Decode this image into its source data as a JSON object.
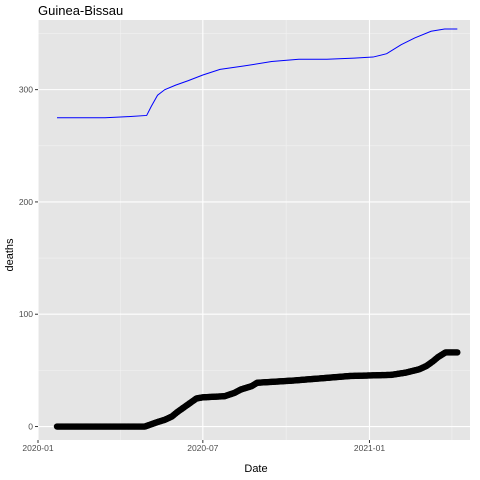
{
  "chart_data": {
    "type": "line",
    "title": "Guinea-Bissau",
    "xlabel": "Date",
    "ylabel": "deaths",
    "x_type": "date",
    "xlim": [
      "2020-01-01",
      "2021-04-22"
    ],
    "ylim": [
      -12,
      362
    ],
    "x_ticks": [
      {
        "value": "2020-01-01",
        "label": "2020-01"
      },
      {
        "value": "2020-07-01",
        "label": "2020-07"
      },
      {
        "value": "2021-01-01",
        "label": "2021-01"
      }
    ],
    "y_ticks": [
      0,
      100,
      200,
      300
    ],
    "grid": true,
    "background": "#E5E5E5",
    "series": [
      {
        "style": "line",
        "color": "#0000FF",
        "points": [
          [
            "2020-01-22",
            275
          ],
          [
            "2020-03-15",
            275
          ],
          [
            "2020-04-10",
            276
          ],
          [
            "2020-04-30",
            277
          ],
          [
            "2020-05-05",
            285
          ],
          [
            "2020-05-12",
            295
          ],
          [
            "2020-05-20",
            300
          ],
          [
            "2020-06-01",
            304
          ],
          [
            "2020-06-15",
            308
          ],
          [
            "2020-07-01",
            313
          ],
          [
            "2020-07-20",
            318
          ],
          [
            "2020-08-15",
            321
          ],
          [
            "2020-09-15",
            325
          ],
          [
            "2020-10-15",
            327
          ],
          [
            "2020-11-15",
            327
          ],
          [
            "2020-12-15",
            328
          ],
          [
            "2021-01-05",
            329
          ],
          [
            "2021-01-20",
            332
          ],
          [
            "2021-02-05",
            340
          ],
          [
            "2021-02-20",
            346
          ],
          [
            "2021-03-10",
            352
          ],
          [
            "2021-03-25",
            354
          ],
          [
            "2021-04-08",
            354
          ]
        ]
      },
      {
        "style": "points",
        "color": "#000000",
        "points": [
          [
            "2020-01-22",
            0
          ],
          [
            "2020-04-28",
            0
          ],
          [
            "2020-05-05",
            2
          ],
          [
            "2020-05-12",
            4
          ],
          [
            "2020-05-20",
            6
          ],
          [
            "2020-05-28",
            9
          ],
          [
            "2020-06-03",
            13
          ],
          [
            "2020-06-10",
            17
          ],
          [
            "2020-06-17",
            21
          ],
          [
            "2020-06-24",
            25
          ],
          [
            "2020-07-01",
            26
          ],
          [
            "2020-07-25",
            27
          ],
          [
            "2020-08-05",
            30
          ],
          [
            "2020-08-12",
            33
          ],
          [
            "2020-08-24",
            36
          ],
          [
            "2020-08-30",
            39
          ],
          [
            "2020-09-20",
            40
          ],
          [
            "2020-10-10",
            41
          ],
          [
            "2020-10-25",
            42
          ],
          [
            "2020-11-10",
            43
          ],
          [
            "2020-11-25",
            44
          ],
          [
            "2020-12-10",
            45
          ],
          [
            "2021-01-25",
            46
          ],
          [
            "2021-02-10",
            48
          ],
          [
            "2021-02-25",
            51
          ],
          [
            "2021-03-05",
            54
          ],
          [
            "2021-03-12",
            58
          ],
          [
            "2021-03-18",
            62
          ],
          [
            "2021-03-26",
            66
          ],
          [
            "2021-04-08",
            66
          ]
        ]
      }
    ]
  }
}
